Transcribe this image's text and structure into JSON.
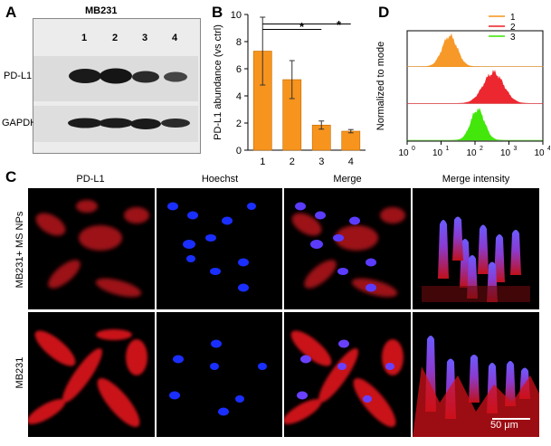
{
  "panels": {
    "a": {
      "letter": "A",
      "cell_line": "MB231",
      "lanes": [
        "1",
        "2",
        "3",
        "4"
      ],
      "bands": [
        "PD-L1",
        "GAPDH"
      ]
    },
    "b": {
      "letter": "B",
      "significance": [
        "*",
        "*"
      ]
    },
    "c": {
      "letter": "C",
      "columns": [
        "PD-L1",
        "Hoechst",
        "Merge",
        "Merge intensity"
      ],
      "rows": [
        "MB231+ MS NPs",
        "MB231"
      ],
      "scale_bar": "50 μm"
    },
    "d": {
      "letter": "D"
    }
  },
  "chart_data": [
    {
      "type": "bar",
      "categories": [
        "1",
        "2",
        "3",
        "4"
      ],
      "values": [
        7.3,
        5.2,
        1.85,
        1.4
      ],
      "errors": [
        2.5,
        1.4,
        0.3,
        0.12
      ],
      "ylabel": "PD-L1 abundance (vs ctrl)",
      "xlabel": "",
      "ylim": [
        0,
        10
      ],
      "yticks": [
        0,
        2,
        4,
        6,
        8,
        10
      ],
      "bar_color": "#f7941d",
      "grid": false
    },
    {
      "type": "area",
      "ylabel": "Normalized to mode",
      "xscale": "log",
      "xlim": [
        1,
        10000
      ],
      "xticks": [
        "10",
        "10",
        "10",
        "10",
        "10"
      ],
      "xtick_exponents": [
        "0",
        "1",
        "2",
        "3",
        "4"
      ],
      "legend_placement": "top-right",
      "series": [
        {
          "name": "1",
          "color": "#f7941d",
          "peak": 18,
          "spread": 0.22
        },
        {
          "name": "2",
          "color": "#ed1c24",
          "peak": 350,
          "spread": 0.3
        },
        {
          "name": "3",
          "color": "#39e600",
          "peak": 120,
          "spread": 0.2
        }
      ]
    }
  ]
}
